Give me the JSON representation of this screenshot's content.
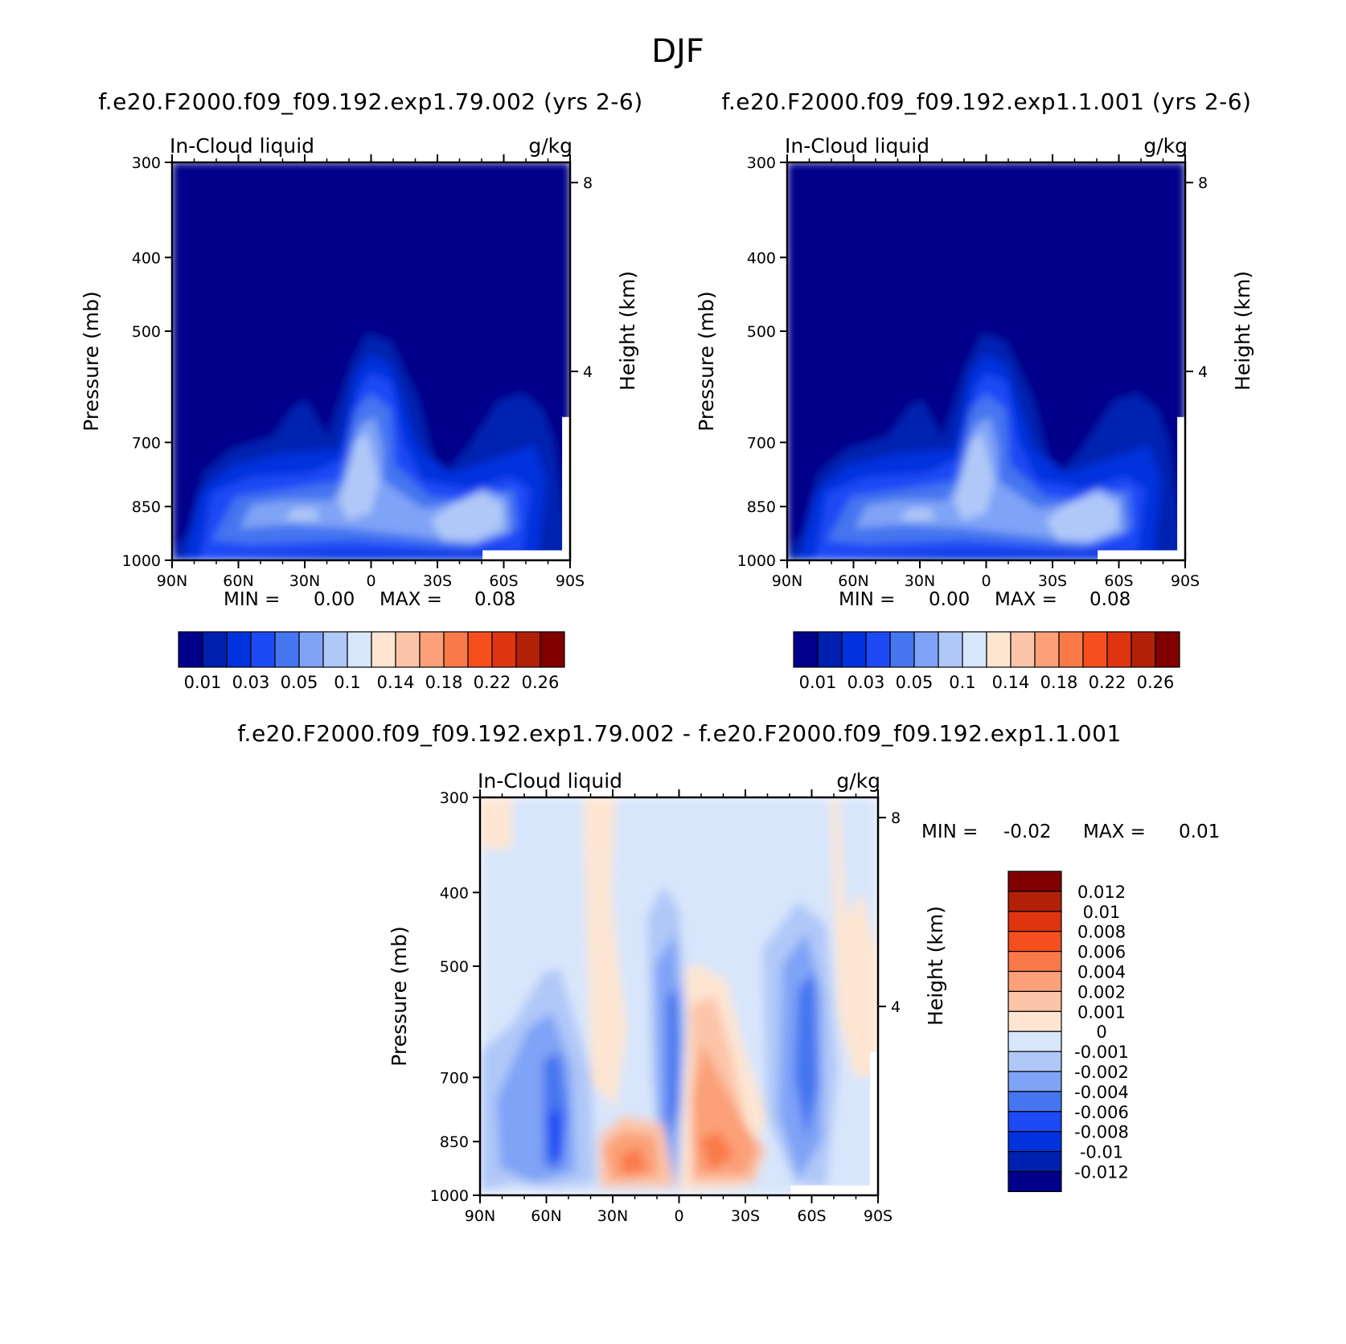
{
  "page_title": "DJF",
  "colors": {
    "abs_scale": [
      "#00008b",
      "#0020b0",
      "#0033dd",
      "#1d4af5",
      "#4575f0",
      "#7fa3f6",
      "#b0c8f8",
      "#d8e6fb",
      "#fde5d2",
      "#fcc4a8",
      "#fba078",
      "#f97a48",
      "#f54f1e",
      "#df3410",
      "#b32008",
      "#800000"
    ],
    "diff_scale": [
      "#00008b",
      "#0020b0",
      "#0033dd",
      "#1d4af5",
      "#4575f0",
      "#7fa3f6",
      "#b0c8f8",
      "#d8e6fb",
      "#fde5d2",
      "#fcc4a8",
      "#fba078",
      "#f97a48",
      "#f54f1e",
      "#df3410",
      "#b32008",
      "#800000"
    ]
  },
  "chart_data": [
    {
      "id": "top-left",
      "type": "heatmap",
      "title": "f.e20.F2000.f09_f09.192.exp1.79.002 (yrs 2-6)",
      "field_label": "In-Cloud liquid",
      "units": "g/kg",
      "ylabel": "Pressure (mb)",
      "y2label": "Height (km)",
      "x_ticks": [
        "90N",
        "60N",
        "30N",
        "0",
        "30S",
        "60S",
        "90S"
      ],
      "y_ticks": [
        300,
        400,
        500,
        700,
        850,
        1000
      ],
      "y2_ticks": [
        8,
        4
      ],
      "ylim": [
        1000,
        300
      ],
      "stats": {
        "min_label": "MIN =",
        "min": "0.00",
        "max_label": "MAX =",
        "max": "0.08"
      },
      "colorbar_labels": [
        "0.01",
        "0.03",
        "0.05",
        "0.1",
        "0.14",
        "0.18",
        "0.22",
        "0.26"
      ]
    },
    {
      "id": "top-right",
      "type": "heatmap",
      "title": "f.e20.F2000.f09_f09.192.exp1.1.001 (yrs 2-6)",
      "field_label": "In-Cloud liquid",
      "units": "g/kg",
      "ylabel": "Pressure (mb)",
      "y2label": "Height (km)",
      "x_ticks": [
        "90N",
        "60N",
        "30N",
        "0",
        "30S",
        "60S",
        "90S"
      ],
      "y_ticks": [
        300,
        400,
        500,
        700,
        850,
        1000
      ],
      "y2_ticks": [
        8,
        4
      ],
      "ylim": [
        1000,
        300
      ],
      "stats": {
        "min_label": "MIN =",
        "min": "0.00",
        "max_label": "MAX =",
        "max": "0.08"
      },
      "colorbar_labels": [
        "0.01",
        "0.03",
        "0.05",
        "0.1",
        "0.14",
        "0.18",
        "0.22",
        "0.26"
      ]
    },
    {
      "id": "bottom",
      "type": "heatmap",
      "title": "f.e20.F2000.f09_f09.192.exp1.79.002 - f.e20.F2000.f09_f09.192.exp1.1.001",
      "field_label": "In-Cloud liquid",
      "units": "g/kg",
      "ylabel": "Pressure (mb)",
      "y2label": "Height (km)",
      "x_ticks": [
        "90N",
        "60N",
        "30N",
        "0",
        "30S",
        "60S",
        "90S"
      ],
      "y_ticks": [
        300,
        400,
        500,
        700,
        850,
        1000
      ],
      "y2_ticks": [
        8,
        4
      ],
      "ylim": [
        1000,
        300
      ],
      "stats": {
        "min_label": "MIN =",
        "min": "-0.02",
        "max_label": "MAX =",
        "max": "0.01"
      },
      "colorbar_labels": [
        "0.012",
        "0.01",
        "0.008",
        "0.006",
        "0.004",
        "0.002",
        "0.001",
        "0",
        "-0.001",
        "-0.002",
        "-0.004",
        "-0.006",
        "-0.008",
        "-0.01",
        "-0.012"
      ]
    }
  ]
}
